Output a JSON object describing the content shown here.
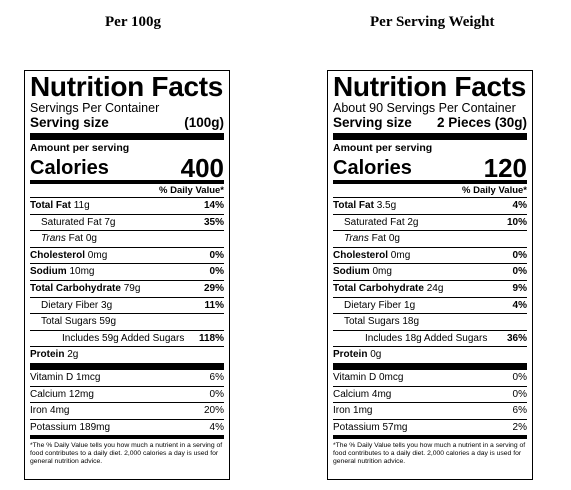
{
  "headings": {
    "left": "Per 100g",
    "right": "Per Serving Weight"
  },
  "labels": [
    {
      "title": "Nutrition Facts",
      "servings_per_container": "Servings Per Container",
      "serving_size_label": "Serving size",
      "serving_size_value": "(100g)",
      "amount_per_serving": "Amount per serving",
      "calories_label": "Calories",
      "calories_value": "400",
      "daily_value_header": "% Daily Value*",
      "total_fat": {
        "name": "Total Fat",
        "amount": "11g",
        "dv": "14%"
      },
      "saturated_fat": {
        "name": "Saturated Fat 7g",
        "dv": "35%"
      },
      "trans_fat": {
        "name": "Trans",
        "amount": "Fat 0g"
      },
      "cholesterol": {
        "name": "Cholesterol",
        "amount": "0mg",
        "dv": "0%"
      },
      "sodium": {
        "name": "Sodium",
        "amount": "10mg",
        "dv": "0%"
      },
      "total_carb": {
        "name": "Total Carbohydrate",
        "amount": "79g",
        "dv": "29%"
      },
      "fiber": {
        "name": "Dietary Fiber 3g",
        "dv": "11%"
      },
      "sugars": {
        "name": "Total Sugars 59g"
      },
      "added_sugars": {
        "name": "Includes 59g Added Sugars",
        "dv": "118%"
      },
      "protein": {
        "name": "Protein",
        "amount": "2g"
      },
      "vitamin_d": {
        "name": "Vitamin D 1mcg",
        "dv": "6%"
      },
      "calcium": {
        "name": "Calcium 12mg",
        "dv": "0%"
      },
      "iron": {
        "name": "Iron 4mg",
        "dv": "20%"
      },
      "potassium": {
        "name": "Potassium 189mg",
        "dv": "4%"
      },
      "footnote": "*The % Daily Value tells you how much a nutrient in a serving of food contributes to a daily diet. 2,000 calories a day is used for general nutrition advice."
    },
    {
      "title": "Nutrition Facts",
      "servings_per_container": "About 90 Servings Per Container",
      "serving_size_label": "Serving size",
      "serving_size_value": "2 Pieces (30g)",
      "amount_per_serving": "Amount per serving",
      "calories_label": "Calories",
      "calories_value": "120",
      "daily_value_header": "% Daily Value*",
      "total_fat": {
        "name": "Total Fat",
        "amount": "3.5g",
        "dv": "4%"
      },
      "saturated_fat": {
        "name": "Saturated Fat 2g",
        "dv": "10%"
      },
      "trans_fat": {
        "name": "Trans",
        "amount": "Fat 0g"
      },
      "cholesterol": {
        "name": "Cholesterol",
        "amount": "0mg",
        "dv": "0%"
      },
      "sodium": {
        "name": "Sodium",
        "amount": "0mg",
        "dv": "0%"
      },
      "total_carb": {
        "name": "Total Carbohydrate",
        "amount": "24g",
        "dv": "9%"
      },
      "fiber": {
        "name": "Dietary Fiber 1g",
        "dv": "4%"
      },
      "sugars": {
        "name": "Total Sugars 18g"
      },
      "added_sugars": {
        "name": "Includes 18g Added Sugars",
        "dv": "36%"
      },
      "protein": {
        "name": "Protein",
        "amount": "0g"
      },
      "vitamin_d": {
        "name": "Vitamin D 0mcg",
        "dv": "0%"
      },
      "calcium": {
        "name": "Calcium 4mg",
        "dv": "0%"
      },
      "iron": {
        "name": "Iron 1mg",
        "dv": "6%"
      },
      "potassium": {
        "name": "Potassium 57mg",
        "dv": "2%"
      },
      "footnote": "*The % Daily Value tells you how much a nutrient in a serving of food contributes to a daily diet. 2,000 calories a day is used for general nutrition advice."
    }
  ]
}
